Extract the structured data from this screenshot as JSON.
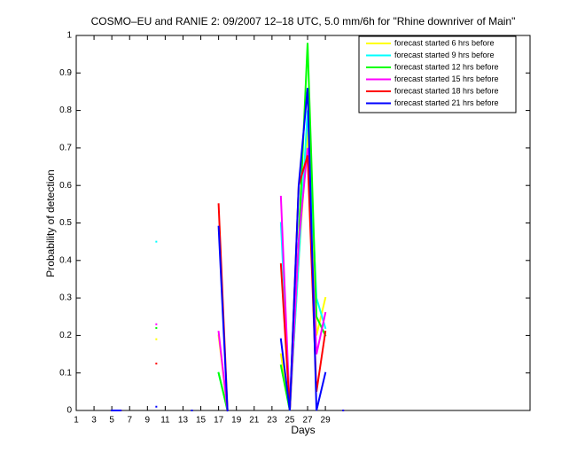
{
  "chart_data": {
    "type": "line",
    "title": "COSMO–EU and RANIE 2: 09/2007 12–18 UTC, 5.0 mm/6h for \"Rhine downriver of Main\"",
    "x_label": "Days",
    "y_label": "Probability of detection",
    "x": [
      1,
      2,
      3,
      4,
      5,
      6,
      7,
      8,
      9,
      10,
      11,
      12,
      13,
      14,
      15,
      16,
      17,
      18,
      19,
      20,
      21,
      22,
      23,
      24,
      25,
      26,
      27,
      28,
      29,
      30,
      31
    ],
    "xlim": [
      1,
      52
    ],
    "xticks": [
      1,
      3,
      5,
      7,
      9,
      11,
      13,
      15,
      17,
      19,
      21,
      23,
      25,
      27,
      29
    ],
    "ylim": [
      0,
      1
    ],
    "yticks": [
      0,
      0.1,
      0.2,
      0.3,
      0.4,
      0.5,
      0.6,
      0.7,
      0.8,
      0.9,
      1
    ],
    "grid": false,
    "legend": "top-right",
    "series": [
      {
        "name": "forecast started 6 hrs before",
        "color": "#ffff00",
        "values": [
          null,
          null,
          null,
          null,
          0,
          0,
          null,
          null,
          null,
          0.19,
          null,
          null,
          null,
          0,
          null,
          null,
          0.2,
          0,
          null,
          null,
          null,
          null,
          null,
          0.15,
          0,
          0.4,
          0.75,
          0.2,
          0.3,
          null,
          0
        ]
      },
      {
        "name": "forecast started 9 hrs before",
        "color": "#00ffff",
        "values": [
          null,
          null,
          null,
          null,
          0,
          0,
          null,
          null,
          null,
          0.45,
          null,
          null,
          null,
          0,
          null,
          null,
          0.1,
          0,
          null,
          null,
          null,
          null,
          null,
          0.5,
          0,
          0.4,
          0.8,
          0.3,
          0.22,
          null,
          0
        ]
      },
      {
        "name": "forecast started 12 hrs before",
        "color": "#00ff00",
        "values": [
          null,
          null,
          null,
          null,
          0,
          0,
          null,
          null,
          null,
          0.22,
          null,
          null,
          null,
          0,
          null,
          null,
          0.1,
          0,
          null,
          null,
          null,
          null,
          null,
          0.12,
          0,
          0.45,
          0.98,
          0.25,
          0.2,
          null,
          0
        ]
      },
      {
        "name": "forecast started 15 hrs before",
        "color": "#ff00ff",
        "values": [
          null,
          null,
          null,
          null,
          0,
          0,
          null,
          null,
          null,
          0.23,
          null,
          null,
          null,
          0,
          null,
          null,
          0.21,
          0,
          null,
          null,
          null,
          null,
          null,
          0.57,
          0,
          0.45,
          0.7,
          0.15,
          0.26,
          null,
          0
        ]
      },
      {
        "name": "forecast started 18 hrs before",
        "color": "#ff0000",
        "values": [
          null,
          null,
          null,
          null,
          0,
          0,
          null,
          null,
          null,
          0.125,
          null,
          null,
          null,
          0,
          null,
          null,
          0.55,
          0,
          null,
          null,
          null,
          null,
          null,
          0.39,
          0,
          0.6,
          0.68,
          0.05,
          0.21,
          null,
          0
        ]
      },
      {
        "name": "forecast started 21 hrs before",
        "color": "#0000ff",
        "values": [
          null,
          null,
          null,
          null,
          0,
          0,
          null,
          null,
          null,
          0.01,
          null,
          null,
          null,
          0,
          null,
          null,
          0.49,
          0,
          null,
          null,
          null,
          null,
          null,
          0.19,
          0,
          0.6,
          0.86,
          0,
          0.1,
          null,
          0
        ]
      }
    ]
  }
}
